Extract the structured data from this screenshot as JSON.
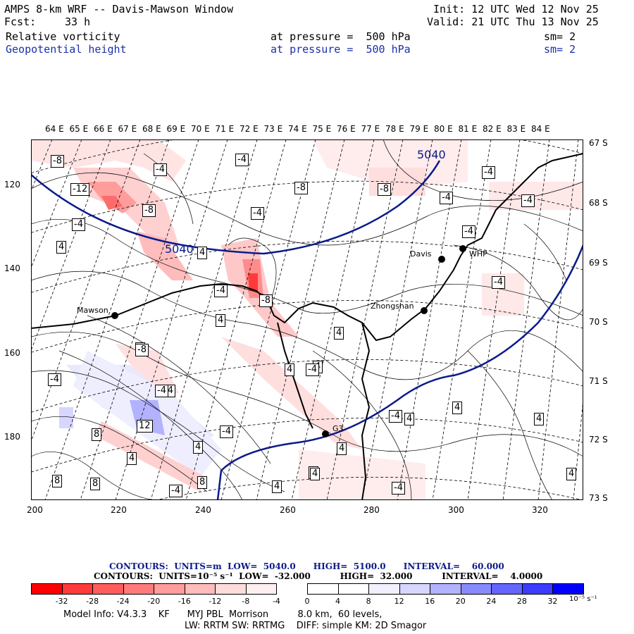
{
  "header": {
    "title": "AMPS 8-km WRF -- Davis-Mawson Window",
    "init": "Init: 12 UTC Wed 12 Nov 25",
    "fcst_label": "Fcst:",
    "fcst_value": "33 h",
    "valid": "Valid: 21 UTC Thu 13 Nov 25",
    "field1_name": "Relative vorticity",
    "field1_level": "at pressure =  500 hPa",
    "field1_sm": "sm= 2",
    "field2_name": "Geopotential height",
    "field2_level": "at pressure =  500 hPa",
    "field2_sm": "sm= 2"
  },
  "lon_labels": [
    "64 E",
    "65 E",
    "66 E",
    "67 E",
    "68 E",
    "69 E",
    "70 E",
    "71 E",
    "72 E",
    "73 E",
    "74 E",
    "75 E",
    "76 E",
    "77 E",
    "78 E",
    "79 E",
    "80 E",
    "81 E",
    "82 E",
    "83 E",
    "84 E"
  ],
  "lat_labels": [
    "67 S",
    "68 S",
    "69 S",
    "70 S",
    "71 S",
    "72 S",
    "73 S"
  ],
  "y_ticks": [
    "120",
    "140",
    "160",
    "180"
  ],
  "x_ticks": [
    "200",
    "220",
    "240",
    "260",
    "280",
    "300",
    "320"
  ],
  "contour_labels": [
    "-8",
    "-4",
    "-4",
    "-12",
    "-8",
    "-4",
    "-8",
    "-4",
    "-4",
    "-4",
    "-4",
    "-8",
    "4",
    "-4",
    "4",
    "4",
    "-4",
    "4",
    "-8",
    "4",
    "-4",
    "4",
    "-4",
    "-4",
    "4",
    "-8",
    "-4",
    "-4",
    "12",
    "-4",
    "8",
    "4",
    "8",
    "-4",
    "8",
    "4",
    "8",
    "4",
    "4",
    "-4",
    "4",
    "4",
    "4",
    "4",
    "4",
    "-4",
    "4"
  ],
  "height_labels": [
    "5040",
    "5040"
  ],
  "stations": [
    "Mawson",
    "Davis",
    "WHP",
    "Zhongshan",
    "G3"
  ],
  "contour_info": {
    "line1": "CONTOURS:  UNITS=m  LOW=  5040.0      HIGH=  5100.0      INTERVAL=    60.000",
    "line2": "CONTOURS:  UNITS=10⁻⁵ s⁻¹  LOW=  -32.000          HIGH=  32.000          INTERVAL=    4.0000"
  },
  "colorbar": {
    "colors": [
      "#ff0000",
      "#ff3a3a",
      "#ff5c5c",
      "#ff7b7b",
      "#ff9c9c",
      "#ffbcbc",
      "#ffdcdc",
      "#fff0f0",
      "#ffffff",
      "#ffffff",
      "#f0f0ff",
      "#d6d6ff",
      "#b2b2ff",
      "#8a8aff",
      "#6464ff",
      "#3c3cff",
      "#0000ff"
    ],
    "labels": [
      "-32",
      "-28",
      "-24",
      "-20",
      "-16",
      "-12",
      "-8",
      "-4",
      "0",
      "4",
      "8",
      "12",
      "16",
      "20",
      "24",
      "28",
      "32"
    ],
    "unit": "10⁻⁵ s⁻¹"
  },
  "footer": {
    "line1": "Model Info: V4.3.3    KF      MYJ PBL  Morrison          8.0 km,  60 levels,",
    "line2": "LW: RRTM SW: RRTMG    DIFF: simple KM: 2D Smagor"
  }
}
